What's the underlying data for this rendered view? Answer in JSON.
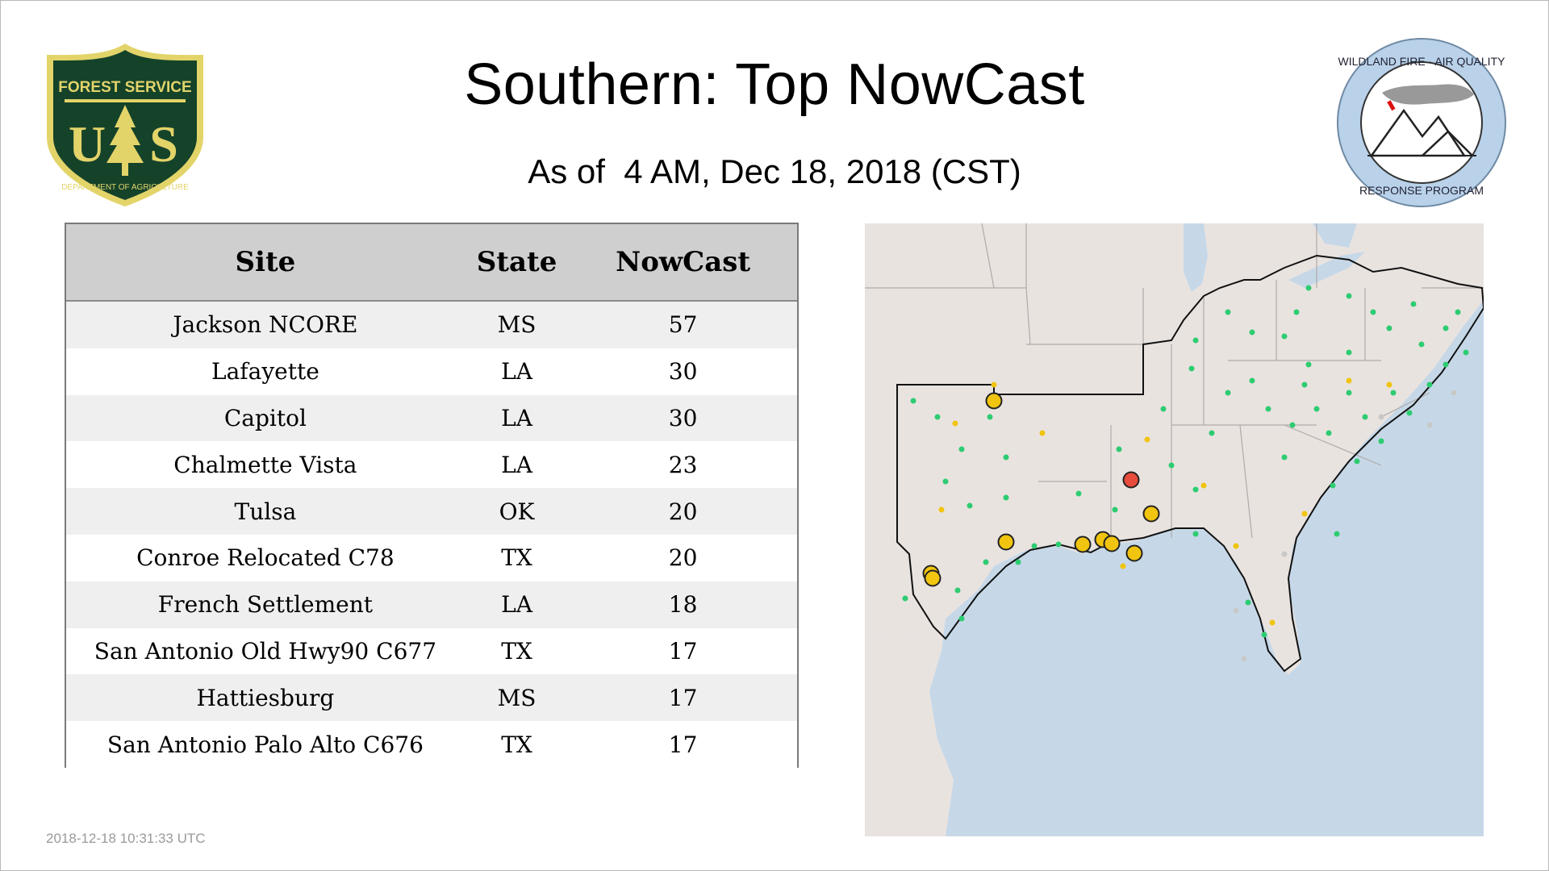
{
  "header": {
    "title": "Southern: Top NowCast",
    "subtitle": "As of  4 AM, Dec 18, 2018 (CST)"
  },
  "logos": {
    "left": {
      "name": "forest-service-logo",
      "top_text": "FOREST SERVICE",
      "letters": "U S",
      "bottom_text": "DEPARTMENT OF AGRICULTURE"
    },
    "right": {
      "name": "wildland-fire-air-quality-logo",
      "top_text": "WILDLAND FIRE · AIR QUALITY",
      "bottom_text": "RESPONSE PROGRAM"
    }
  },
  "table": {
    "columns": [
      "Site",
      "State",
      "NowCast"
    ],
    "rows": [
      {
        "site": "Jackson NCORE",
        "state": "MS",
        "nowcast": "57"
      },
      {
        "site": "Lafayette",
        "state": "LA",
        "nowcast": "30"
      },
      {
        "site": "Capitol",
        "state": "LA",
        "nowcast": "30"
      },
      {
        "site": "Chalmette Vista",
        "state": "LA",
        "nowcast": "23"
      },
      {
        "site": "Tulsa",
        "state": "OK",
        "nowcast": "20"
      },
      {
        "site": "Conroe Relocated C78",
        "state": "TX",
        "nowcast": "20"
      },
      {
        "site": "French Settlement",
        "state": "LA",
        "nowcast": "18"
      },
      {
        "site": "San Antonio Old Hwy90 C677",
        "state": "TX",
        "nowcast": "17"
      },
      {
        "site": "Hattiesburg",
        "state": "MS",
        "nowcast": "17"
      },
      {
        "site": "San Antonio Palo Alto C676",
        "state": "TX",
        "nowcast": "17"
      }
    ]
  },
  "map": {
    "colors": {
      "land": "#e9e3e0",
      "water": "#c6d8e8",
      "border": "#b0aaa8",
      "region_outline": "#000000",
      "good": "#2ecc71",
      "moderate": "#f1c40f",
      "unhealthy_sensitive": "#e74c3c",
      "nodata": "#c8c8c8"
    }
  },
  "footer": {
    "timestamp": "2018-12-18 10:31:33 UTC"
  }
}
